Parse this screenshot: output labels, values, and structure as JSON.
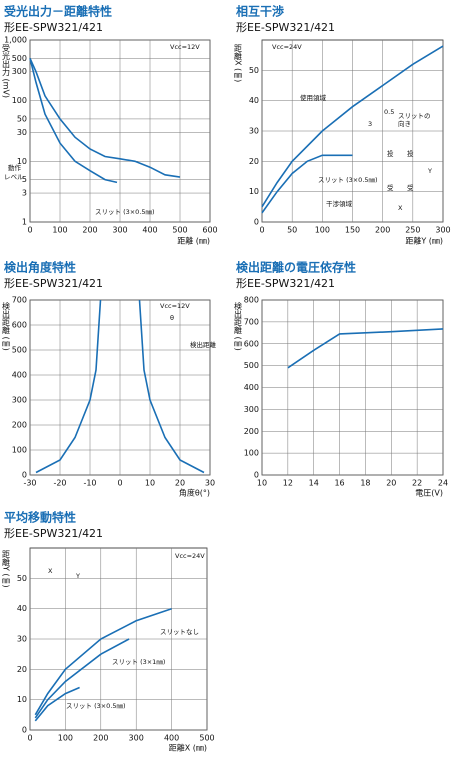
{
  "chart_data": [
    {
      "type": "line",
      "title": "受光出力－距離特性",
      "subtitle": "形EE-SPW321/421",
      "xlabel": "距離 (㎜)",
      "ylabel": "受光出力 (mV)",
      "xlim": [
        0,
        600
      ],
      "ylim": [
        1,
        1000
      ],
      "yscale": "log",
      "grid": true,
      "xticks": [
        0,
        100,
        200,
        300,
        400,
        500,
        600
      ],
      "yticks": [
        1,
        3,
        5,
        10,
        30,
        50,
        100,
        300,
        500,
        {
          "value": 1000,
          "label": "1,000"
        }
      ],
      "annotations": [
        "Vcc=12V",
        "動作",
        "レベル"
      ],
      "series": [
        {
          "color": "#1a6fb5",
          "x": [
            0,
            20,
            50,
            100,
            150,
            200,
            250,
            300,
            350,
            400,
            450,
            500
          ],
          "values": [
            500,
            300,
            120,
            50,
            25,
            16,
            12,
            11,
            10,
            8,
            6,
            5.5
          ]
        },
        {
          "name": "スリット (3×0.5㎜)",
          "color": "#1a6fb5",
          "x": [
            0,
            20,
            50,
            100,
            150,
            200,
            250,
            290
          ],
          "values": [
            500,
            200,
            60,
            20,
            10,
            7,
            5,
            4.5
          ]
        }
      ]
    },
    {
      "type": "line",
      "title": "相互干渉",
      "subtitle": "形EE-SPW321/421",
      "xlabel": "距離Y (㎜)",
      "ylabel": "距離X (㎜)",
      "xlim": [
        0,
        300
      ],
      "ylim": [
        0,
        60
      ],
      "grid": true,
      "xticks": [
        0,
        50,
        100,
        150,
        200,
        250,
        300
      ],
      "yticks": [
        0,
        10,
        20,
        30,
        40,
        50
      ],
      "annotations": [
        "Vcc=24V",
        "使用領域",
        "干渉領域",
        "0.5",
        "3",
        "スリットの",
        "向き",
        "投",
        "投",
        "受",
        "受",
        "X",
        "Y"
      ],
      "series": [
        {
          "color": "#1a6fb5",
          "x": [
            0,
            25,
            50,
            100,
            150,
            200,
            250,
            300
          ],
          "values": [
            5,
            13,
            20,
            30,
            38,
            45,
            52,
            58
          ]
        },
        {
          "name": "スリット (3×0.5㎜)",
          "color": "#1a6fb5",
          "x": [
            0,
            25,
            50,
            75,
            100,
            150
          ],
          "values": [
            3,
            10,
            16,
            20,
            22,
            22
          ]
        }
      ]
    },
    {
      "type": "line",
      "title": "検出角度特性",
      "subtitle": "形EE-SPW321/421",
      "xlabel": "角度θ(°)",
      "ylabel": "検出距離 (㎜)",
      "xlim": [
        -30,
        30
      ],
      "ylim": [
        0,
        700
      ],
      "grid": true,
      "xticks": [
        -30,
        -20,
        -10,
        0,
        10,
        20,
        30
      ],
      "yticks": [
        0,
        100,
        200,
        300,
        400,
        500,
        600,
        700
      ],
      "annotations": [
        "Vcc=12V",
        "θ",
        "検出距離"
      ],
      "series": [
        {
          "color": "#1a6fb5",
          "x": [
            -28,
            -20,
            -15,
            -10,
            -8,
            -6.5,
            0,
            6.5,
            8,
            10,
            15,
            20,
            28
          ],
          "values": [
            10,
            60,
            150,
            300,
            420,
            700,
            null,
            700,
            420,
            300,
            150,
            60,
            10
          ]
        }
      ]
    },
    {
      "type": "line",
      "title": "検出距離の電圧依存性",
      "subtitle": "形EE-SPW321/421",
      "xlabel": "電圧(V)",
      "ylabel": "検出距離 (㎜)",
      "xlim": [
        10,
        24
      ],
      "ylim": [
        0,
        800
      ],
      "grid": true,
      "xticks": [
        10,
        12,
        14,
        16,
        18,
        20,
        22,
        24
      ],
      "yticks": [
        0,
        100,
        200,
        300,
        400,
        500,
        600,
        700,
        800
      ],
      "annotations": [],
      "series": [
        {
          "color": "#1a6fb5",
          "x": [
            12,
            14,
            16,
            18,
            20,
            24
          ],
          "values": [
            490,
            570,
            645,
            650,
            655,
            668
          ]
        }
      ]
    },
    {
      "type": "line",
      "title": "平均移動特性",
      "subtitle": "形EE-SPW321/421",
      "xlabel": "距離X (㎜)",
      "ylabel": "距離Y (㎜)",
      "xlim": [
        0,
        500
      ],
      "ylim": [
        0,
        60
      ],
      "grid": true,
      "xticks": [
        0,
        100,
        200,
        300,
        400,
        500
      ],
      "yticks": [
        0,
        10,
        20,
        30,
        40,
        50
      ],
      "annotations": [
        "Vcc=24V",
        "X",
        "Y"
      ],
      "series": [
        {
          "name": "スリットなし",
          "color": "#1a6fb5",
          "x": [
            15,
            50,
            100,
            200,
            300,
            400
          ],
          "values": [
            5,
            12,
            20,
            30,
            36,
            40
          ]
        },
        {
          "name": "スリット (3×1㎜)",
          "color": "#1a6fb5",
          "x": [
            15,
            50,
            100,
            200,
            280
          ],
          "values": [
            4,
            10,
            16,
            25,
            30
          ]
        },
        {
          "name": "スリット (3×0.5㎜)",
          "color": "#1a6fb5",
          "x": [
            15,
            50,
            100,
            140
          ],
          "values": [
            3,
            8,
            12,
            14
          ]
        }
      ]
    }
  ]
}
